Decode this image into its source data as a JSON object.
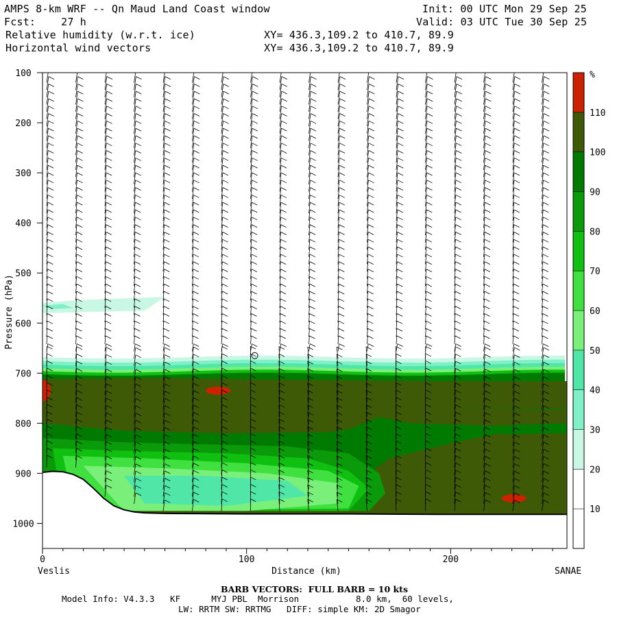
{
  "header": {
    "title": "AMPS 8-km WRF -- Qn Maud Land Coast window",
    "fcst_label": "Fcst:",
    "fcst_value": "27 h",
    "init": "Init: 00 UTC Mon 29 Sep 25",
    "valid": "Valid: 03 UTC Tue 30 Sep 25",
    "field1": "Relative humidity (w.r.t. ice)",
    "field2": "Horizontal wind vectors",
    "xy1": "XY= 436.3,109.2 to 410.7, 89.9",
    "xy2": "XY= 436.3,109.2 to 410.7, 89.9"
  },
  "footer": {
    "barb_note": "BARB VECTORS:  FULL BARB = 10 kts",
    "model_info": "Model Info: V4.3.3   KF      MYJ PBL  Morrison           8.0 km,  60 levels,",
    "physics": "LW: RRTM SW: RRTMG   DIFF: simple KM: 2D Smagor"
  },
  "chart_data": {
    "type": "heatmap",
    "description_fields": [
      "Relative humidity (w.r.t. ice)",
      "Horizontal wind vectors"
    ],
    "xlabel": "Distance (km)",
    "ylabel": "Pressure (hPa)",
    "xlim": [
      0,
      257
    ],
    "ylim": [
      1050,
      100
    ],
    "x_ticks": [
      0,
      100,
      200
    ],
    "y_ticks": [
      100,
      200,
      300,
      400,
      500,
      600,
      700,
      800,
      900,
      1000
    ],
    "left_endpoint": "Veslis",
    "right_endpoint": "SANAE",
    "colorbar": {
      "unit": "%",
      "levels": [
        10,
        20,
        30,
        40,
        50,
        60,
        70,
        80,
        90,
        100,
        110
      ],
      "colors": [
        "#ffffff",
        "#ffffff",
        "#ffffff",
        "#c8f7e4",
        "#7ff0c8",
        "#4fe6a8",
        "#7af07a",
        "#40e040",
        "#10c010",
        "#0a9a0a",
        "#007a00",
        "#3e5a06",
        "#cc2200"
      ]
    },
    "terrain": [
      [
        0,
        898
      ],
      [
        5,
        896
      ],
      [
        10,
        897
      ],
      [
        15,
        902
      ],
      [
        20,
        912
      ],
      [
        25,
        930
      ],
      [
        30,
        950
      ],
      [
        35,
        965
      ],
      [
        40,
        973
      ],
      [
        45,
        977
      ],
      [
        50,
        979
      ],
      [
        60,
        980
      ],
      [
        100,
        981
      ],
      [
        150,
        981
      ],
      [
        200,
        982
      ],
      [
        257,
        982
      ]
    ],
    "annotations": [
      {
        "type": "rh-max",
        "x": 86,
        "p": 735,
        "label": ">110%"
      },
      {
        "type": "rh-max",
        "x": 0,
        "p": 735,
        "label": ">110%"
      },
      {
        "type": "rh-max",
        "x": 231,
        "p": 950,
        "label": ">110%"
      }
    ]
  }
}
